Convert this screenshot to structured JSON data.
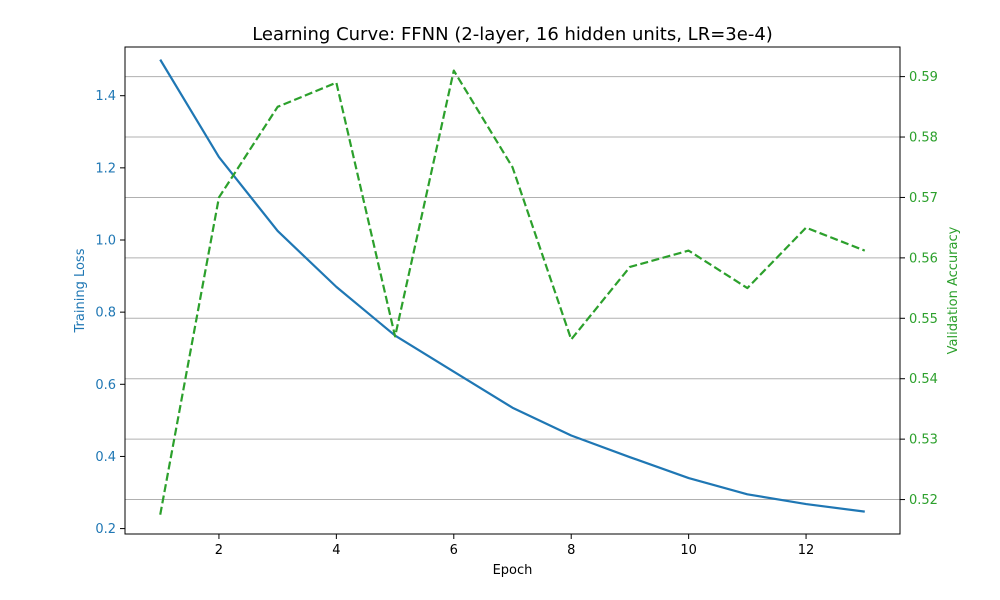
{
  "chart_data": {
    "type": "line",
    "title": "Learning Curve: FFNN (2-layer, 16 hidden units, LR=3e-4)",
    "xlabel": "Epoch",
    "ylabel_left": "Training Loss",
    "ylabel_right": "Validation Accuracy",
    "x": [
      1,
      2,
      3,
      4,
      5,
      6,
      7,
      8,
      9,
      10,
      11,
      12,
      13
    ],
    "xlim": [
      0.4,
      13.6
    ],
    "x_ticks": [
      2,
      4,
      6,
      8,
      10,
      12
    ],
    "y_left_lim": [
      0.185,
      1.535
    ],
    "y_left_ticks": [
      0.2,
      0.4,
      0.6,
      0.8,
      1.0,
      1.2,
      1.4
    ],
    "y_right_lim": [
      0.5143,
      0.5949
    ],
    "y_right_ticks": [
      0.52,
      0.53,
      0.54,
      0.55,
      0.56,
      0.57,
      0.58,
      0.59
    ],
    "grid": "horizontal lines at right-axis ticks",
    "series": [
      {
        "axis": "left",
        "style": "solid",
        "color": "#1f77b4",
        "values": [
          1.5,
          1.23,
          1.025,
          0.87,
          0.735,
          0.635,
          0.535,
          0.458,
          0.398,
          0.34,
          0.295,
          0.268,
          0.247
        ]
      },
      {
        "axis": "right",
        "style": "dashed",
        "color": "#2ca02c",
        "values": [
          0.5175,
          0.57,
          0.585,
          0.589,
          0.547,
          0.591,
          0.575,
          0.5465,
          0.5585,
          0.5612,
          0.555,
          0.565,
          0.5612
        ]
      }
    ]
  },
  "colors": {
    "left_axis": "#1f77b4",
    "right_axis": "#2ca02c",
    "grid": "#b0b0b0",
    "frame": "#000000"
  }
}
